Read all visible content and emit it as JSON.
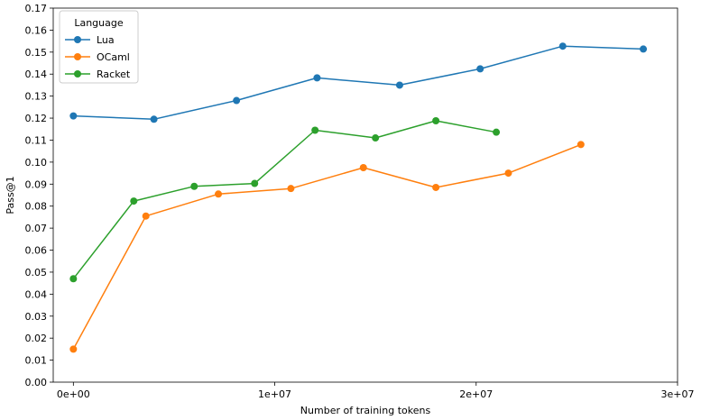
{
  "chart_data": {
    "type": "line",
    "xlabel": "Number of training tokens",
    "ylabel": "Pass@1",
    "xlim": [
      -1000000,
      30000000
    ],
    "ylim": [
      0.0,
      0.17
    ],
    "xticks": [
      0,
      10000000,
      20000000,
      30000000
    ],
    "xtick_labels": [
      "0e+00",
      "1e+07",
      "2e+07",
      "3e+07"
    ],
    "yticks": [
      0.0,
      0.01,
      0.02,
      0.03,
      0.04,
      0.05,
      0.06,
      0.07,
      0.08,
      0.09,
      0.1,
      0.11,
      0.12,
      0.13,
      0.14,
      0.15,
      0.16,
      0.17
    ],
    "ytick_labels": [
      "0.00",
      "0.01",
      "0.02",
      "0.03",
      "0.04",
      "0.05",
      "0.06",
      "0.07",
      "0.08",
      "0.09",
      "0.10",
      "0.11",
      "0.12",
      "0.13",
      "0.14",
      "0.15",
      "0.16",
      "0.17"
    ],
    "grid": false,
    "legend": {
      "title": "Language",
      "placement": "top-left"
    },
    "series": [
      {
        "name": "Lua",
        "color": "#1f77b4",
        "x": [
          0,
          4000000,
          8100000,
          12100000,
          16200000,
          20200000,
          24300000,
          28300000
        ],
        "y": [
          0.121,
          0.1195,
          0.128,
          0.1383,
          0.135,
          0.1424,
          0.1527,
          0.1514
        ]
      },
      {
        "name": "OCaml",
        "color": "#ff7f0e",
        "x": [
          0,
          3600000,
          7200000,
          10800000,
          14400000,
          18000000,
          21600000,
          25200000
        ],
        "y": [
          0.015,
          0.0755,
          0.0855,
          0.088,
          0.0975,
          0.0885,
          0.095,
          0.108
        ]
      },
      {
        "name": "Racket",
        "color": "#2ca02c",
        "x": [
          0,
          3000000,
          6000000,
          9000000,
          12000000,
          15000000,
          18000000,
          21000000
        ],
        "y": [
          0.047,
          0.0823,
          0.089,
          0.0903,
          0.1145,
          0.111,
          0.1188,
          0.1136
        ]
      }
    ]
  }
}
